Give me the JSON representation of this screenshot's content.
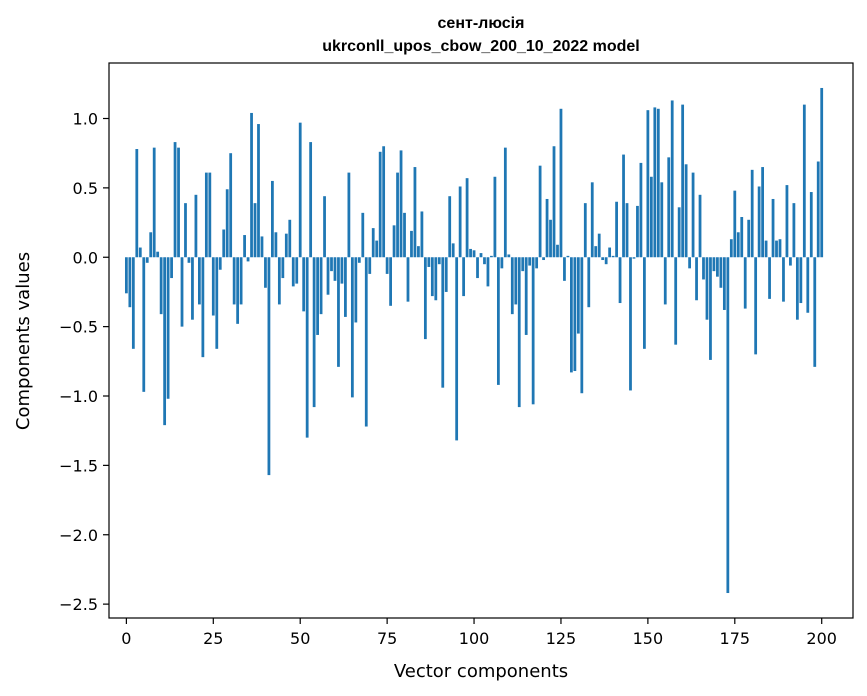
{
  "chart_data": {
    "type": "bar",
    "title": "сент-люсія",
    "subtitle": "ukrconll_upos_cbow_200_10_2022 model",
    "xlabel": "Vector components",
    "ylabel": "Components values",
    "xlim": [
      -5,
      209
    ],
    "ylim": [
      -2.6,
      1.4
    ],
    "xticks": [
      0,
      25,
      50,
      75,
      100,
      125,
      150,
      175,
      200
    ],
    "xtick_labels": [
      "0",
      "25",
      "50",
      "75",
      "100",
      "125",
      "150",
      "175",
      "200"
    ],
    "yticks": [
      -2.5,
      -2.0,
      -1.5,
      -1.0,
      -0.5,
      0.0,
      0.5,
      1.0
    ],
    "ytick_labels": [
      "−2.5",
      "−2.0",
      "−1.5",
      "−1.0",
      "−0.5",
      "0.0",
      "0.5",
      "1.0"
    ],
    "bar_color": "#1f77b4",
    "grid": false,
    "values": [
      -0.26,
      -0.36,
      -0.66,
      0.78,
      0.07,
      -0.97,
      -0.04,
      0.18,
      0.79,
      0.04,
      -0.41,
      -1.21,
      -1.02,
      -0.15,
      0.83,
      0.79,
      -0.5,
      0.39,
      -0.04,
      -0.45,
      0.45,
      -0.34,
      -0.72,
      0.61,
      0.61,
      -0.42,
      -0.66,
      -0.09,
      0.2,
      0.49,
      0.75,
      -0.34,
      -0.48,
      -0.34,
      0.16,
      -0.03,
      1.04,
      0.39,
      0.96,
      0.15,
      -0.22,
      -1.57,
      0.55,
      0.18,
      -0.34,
      -0.15,
      0.17,
      0.27,
      -0.21,
      -0.19,
      0.97,
      -0.39,
      -1.3,
      0.83,
      -1.08,
      -0.56,
      -0.41,
      0.44,
      -0.27,
      -0.1,
      -0.17,
      -0.79,
      -0.19,
      -0.43,
      0.61,
      -1.01,
      -0.47,
      -0.04,
      0.32,
      -1.22,
      -0.12,
      0.21,
      0.12,
      0.76,
      0.8,
      -0.12,
      -0.35,
      0.23,
      0.61,
      0.77,
      0.32,
      -0.32,
      0.19,
      0.65,
      0.08,
      0.33,
      -0.59,
      -0.07,
      -0.28,
      -0.31,
      -0.05,
      -0.94,
      -0.25,
      0.44,
      0.1,
      -1.32,
      0.51,
      -0.28,
      0.57,
      0.06,
      0.05,
      -0.15,
      0.03,
      -0.05,
      -0.21,
      0.01,
      0.58,
      -0.92,
      -0.08,
      0.79,
      0.02,
      -0.41,
      -0.34,
      -1.08,
      -0.1,
      -0.56,
      -0.06,
      -1.06,
      -0.08,
      0.66,
      -0.02,
      0.42,
      0.27,
      0.8,
      0.09,
      1.07,
      -0.17,
      0.01,
      -0.83,
      -0.82,
      -0.55,
      -0.98,
      0.39,
      -0.36,
      0.54,
      0.08,
      0.17,
      -0.02,
      -0.05,
      0.07,
      0.01,
      0.4,
      -0.33,
      0.74,
      0.39,
      -0.96,
      -0.01,
      0.37,
      0.68,
      -0.66,
      1.06,
      0.58,
      1.08,
      1.07,
      0.54,
      -0.34,
      0.72,
      1.13,
      -0.63,
      0.36,
      1.1,
      0.67,
      -0.08,
      0.61,
      -0.31,
      0.45,
      -0.16,
      -0.45,
      -0.74,
      -0.1,
      -0.14,
      -0.22,
      -0.38,
      -2.42,
      0.13,
      0.48,
      0.18,
      0.29,
      -0.37,
      0.27,
      0.63,
      -0.7,
      0.51,
      0.65,
      0.12,
      -0.3,
      0.42,
      0.12,
      0.13,
      -0.32,
      0.52,
      -0.06,
      0.39,
      -0.45,
      -0.33,
      1.1,
      -0.4,
      0.47,
      -0.79,
      0.69,
      1.22
    ]
  }
}
